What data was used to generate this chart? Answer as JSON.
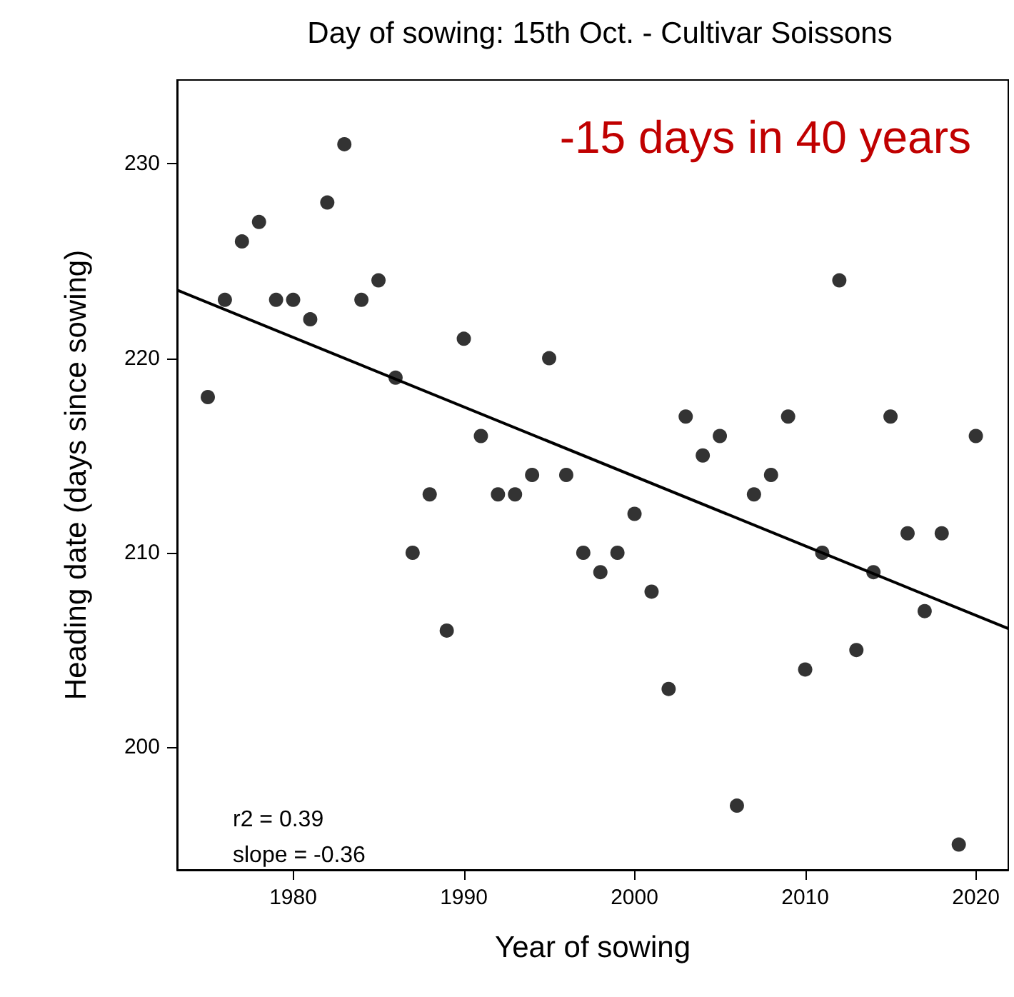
{
  "chart_data": {
    "type": "scatter",
    "title": "Day of sowing: 15th Oct. - Cultivar Soissons",
    "xlabel": "Year of sowing",
    "ylabel": "Heading date (days since sowing)",
    "x": [
      1975,
      1976,
      1977,
      1978,
      1979,
      1980,
      1981,
      1982,
      1983,
      1984,
      1985,
      1986,
      1987,
      1988,
      1989,
      1990,
      1991,
      1992,
      1993,
      1994,
      1995,
      1996,
      1997,
      1998,
      1999,
      2000,
      2001,
      2002,
      2003,
      2004,
      2005,
      2006,
      2007,
      2008,
      2009,
      2010,
      2011,
      2012,
      2013,
      2014,
      2015,
      2016,
      2017,
      2018,
      2019,
      2020
    ],
    "series": [
      {
        "color": "#000000",
        "marker": "circle",
        "values": [
          218,
          223,
          226,
          227,
          223,
          223,
          222,
          228,
          231,
          223,
          224,
          219,
          210,
          213,
          206,
          221,
          216,
          213,
          213,
          214,
          220,
          214,
          210,
          209,
          210,
          212,
          208,
          203,
          217,
          215,
          216,
          197,
          213,
          214,
          217,
          204,
          210,
          224,
          205,
          209,
          217,
          211,
          207,
          211,
          195,
          216
        ]
      },
      {
        "type": "line",
        "color": "#000000",
        "marker": "none",
        "x": [
          1973.2,
          2021.9
        ],
        "values": [
          223.5,
          206.1
        ]
      }
    ],
    "xlim": [
      1973.2,
      2021.9
    ],
    "xticks": [
      1980,
      1990,
      2000,
      2010,
      2020
    ],
    "ylim": [
      193.7,
      234.3
    ],
    "yticks": [
      200,
      210,
      220,
      230
    ],
    "grid": false,
    "annotations": [
      "-15 days in 40 years",
      "r2 = 0.39",
      "slope = -0.36"
    ]
  }
}
